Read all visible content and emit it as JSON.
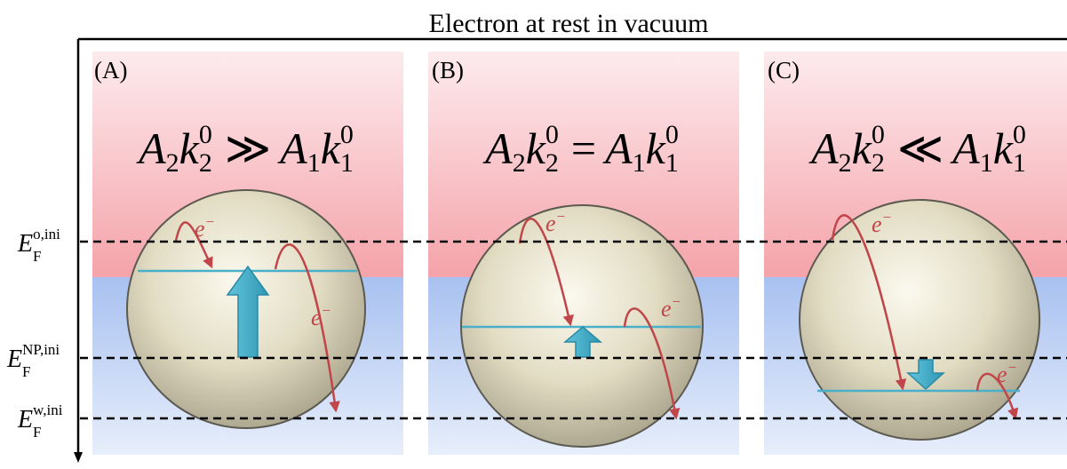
{
  "title": "Electron at rest in vacuum",
  "levels": [
    {
      "main": "E",
      "sub": "F",
      "sup": "o,ini"
    },
    {
      "main": "E",
      "sub": "F",
      "sup": "NP,ini"
    },
    {
      "main": "E",
      "sub": "F",
      "sup": "w,ini"
    }
  ],
  "electron_label": {
    "main": "e",
    "sup": "−"
  },
  "panels": [
    {
      "label": "(A)",
      "relation": "≫",
      "arrow_direction": "up"
    },
    {
      "label": "(B)",
      "relation": "=",
      "arrow_direction": "up"
    },
    {
      "label": "(C)",
      "relation": "≪",
      "arrow_direction": "down"
    }
  ],
  "formula": {
    "lhs": {
      "a": "A",
      "a_sub": "2",
      "k": "k",
      "k_sub": "2",
      "k_sup": "0"
    },
    "rhs": {
      "a": "A",
      "a_sub": "1",
      "k": "k",
      "k_sub": "1",
      "k_sup": "0"
    }
  },
  "colors": {
    "organic_phase": "#f4a6ab",
    "water_phase": "#aec6f1",
    "sphere": "#d8d2b8",
    "fermi_line": "#4ab0c9",
    "arrow": "#3fa9c5",
    "electron_path": "#c0464a"
  }
}
